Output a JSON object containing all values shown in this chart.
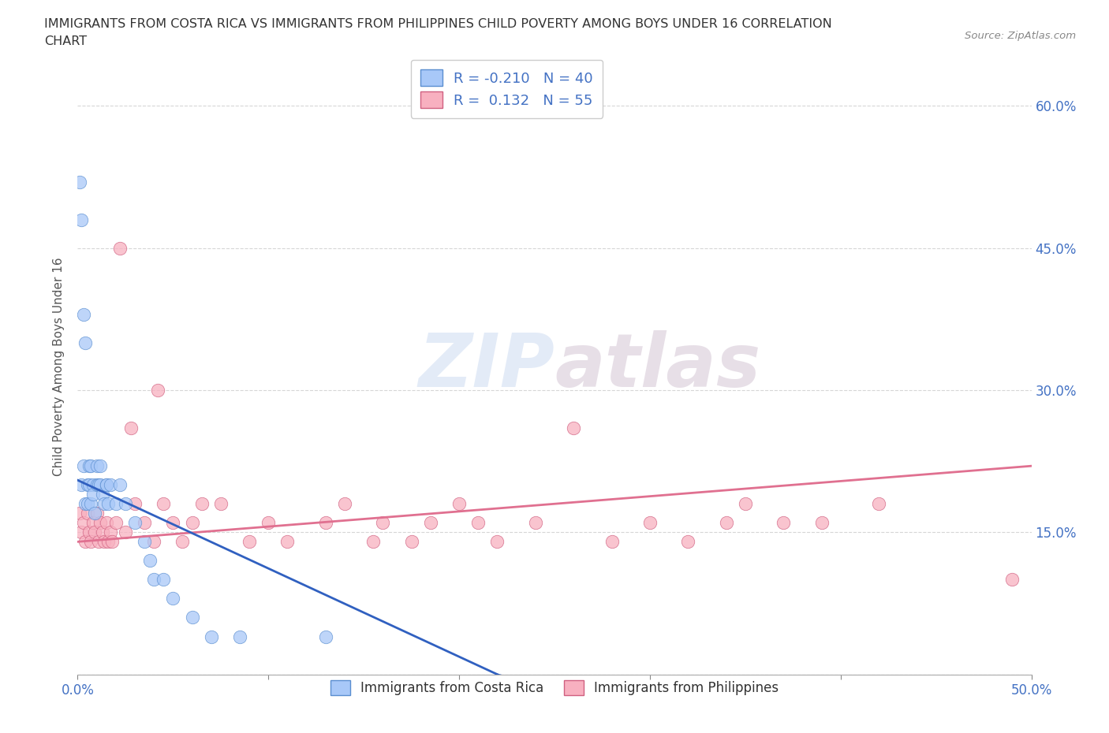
{
  "title_line1": "IMMIGRANTS FROM COSTA RICA VS IMMIGRANTS FROM PHILIPPINES CHILD POVERTY AMONG BOYS UNDER 16 CORRELATION",
  "title_line2": "CHART",
  "source": "Source: ZipAtlas.com",
  "ylabel": "Child Poverty Among Boys Under 16",
  "xlim": [
    0.0,
    0.5
  ],
  "ylim": [
    0.0,
    0.65
  ],
  "xticks": [
    0.0,
    0.1,
    0.2,
    0.3,
    0.4,
    0.5
  ],
  "xtick_labels": [
    "0.0%",
    "",
    "",
    "",
    "",
    "50.0%"
  ],
  "yticks": [
    0.0,
    0.15,
    0.3,
    0.45,
    0.6
  ],
  "ytick_labels_right": [
    "",
    "15.0%",
    "30.0%",
    "45.0%",
    "60.0%"
  ],
  "costa_rica_color": "#A8C8F8",
  "costa_rica_edge": "#5A8ED0",
  "philippines_color": "#F8B0C0",
  "philippines_edge": "#D06080",
  "trend_costa_rica": "#3060C0",
  "trend_philippines": "#E07090",
  "R_costa_rica": -0.21,
  "N_costa_rica": 40,
  "R_philippines": 0.132,
  "N_philippines": 55,
  "watermark": "ZIPatlas",
  "legend_label_cr": "Immigrants from Costa Rica",
  "legend_label_ph": "Immigrants from Philippines",
  "costa_rica_x": [
    0.001,
    0.002,
    0.002,
    0.003,
    0.003,
    0.004,
    0.004,
    0.005,
    0.005,
    0.006,
    0.006,
    0.007,
    0.007,
    0.008,
    0.008,
    0.009,
    0.01,
    0.01,
    0.011,
    0.012,
    0.012,
    0.013,
    0.014,
    0.015,
    0.015,
    0.016,
    0.017,
    0.02,
    0.022,
    0.025,
    0.03,
    0.035,
    0.038,
    0.04,
    0.045,
    0.05,
    0.06,
    0.07,
    0.085,
    0.13
  ],
  "costa_rica_y": [
    0.52,
    0.48,
    0.2,
    0.22,
    0.38,
    0.35,
    0.18,
    0.2,
    0.18,
    0.22,
    0.2,
    0.18,
    0.22,
    0.2,
    0.19,
    0.17,
    0.22,
    0.2,
    0.2,
    0.22,
    0.2,
    0.19,
    0.18,
    0.2,
    0.2,
    0.18,
    0.2,
    0.18,
    0.2,
    0.18,
    0.16,
    0.14,
    0.12,
    0.1,
    0.1,
    0.08,
    0.06,
    0.04,
    0.04,
    0.04
  ],
  "philippines_x": [
    0.001,
    0.002,
    0.003,
    0.004,
    0.005,
    0.006,
    0.007,
    0.008,
    0.009,
    0.01,
    0.011,
    0.012,
    0.013,
    0.014,
    0.015,
    0.016,
    0.017,
    0.018,
    0.02,
    0.022,
    0.025,
    0.028,
    0.03,
    0.035,
    0.04,
    0.042,
    0.045,
    0.05,
    0.055,
    0.06,
    0.065,
    0.075,
    0.09,
    0.1,
    0.11,
    0.13,
    0.14,
    0.155,
    0.16,
    0.175,
    0.185,
    0.2,
    0.21,
    0.22,
    0.24,
    0.26,
    0.28,
    0.3,
    0.32,
    0.34,
    0.35,
    0.37,
    0.39,
    0.42,
    0.49
  ],
  "philippines_y": [
    0.17,
    0.15,
    0.16,
    0.14,
    0.17,
    0.15,
    0.14,
    0.16,
    0.15,
    0.17,
    0.14,
    0.16,
    0.15,
    0.14,
    0.16,
    0.14,
    0.15,
    0.14,
    0.16,
    0.45,
    0.15,
    0.26,
    0.18,
    0.16,
    0.14,
    0.3,
    0.18,
    0.16,
    0.14,
    0.16,
    0.18,
    0.18,
    0.14,
    0.16,
    0.14,
    0.16,
    0.18,
    0.14,
    0.16,
    0.14,
    0.16,
    0.18,
    0.16,
    0.14,
    0.16,
    0.26,
    0.14,
    0.16,
    0.14,
    0.16,
    0.18,
    0.16,
    0.16,
    0.18,
    0.1
  ],
  "cr_trend_x0": 0.0,
  "cr_trend_y0": 0.205,
  "cr_trend_x1": 0.22,
  "cr_trend_y1": 0.0,
  "ph_trend_x0": 0.0,
  "ph_trend_y0": 0.14,
  "ph_trend_x1": 0.5,
  "ph_trend_y1": 0.22
}
